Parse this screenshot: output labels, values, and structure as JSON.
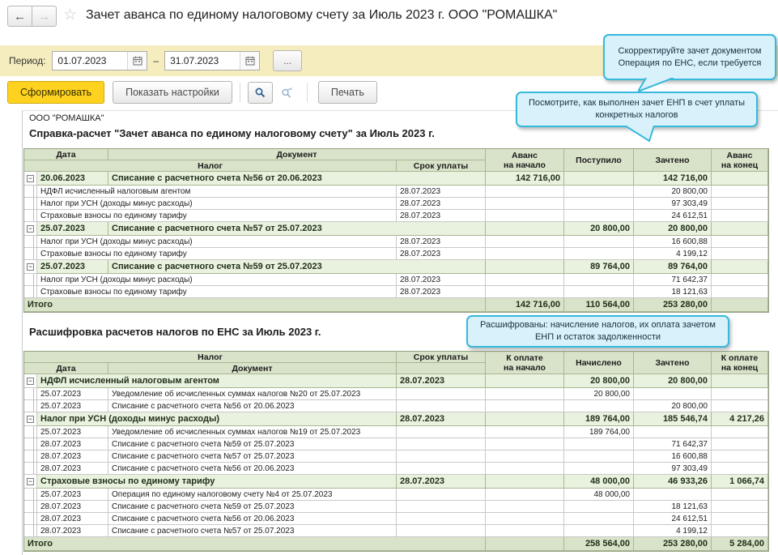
{
  "window": {
    "title": "Зачет аванса по единому налоговому счету за Июль 2023 г. ООО \"РОМАШКА\""
  },
  "period": {
    "label": "Период:",
    "from": "01.07.2023",
    "dash": "–",
    "to": "31.07.2023",
    "more_label": "..."
  },
  "toolbar": {
    "generate_label": "Сформировать",
    "settings_label": "Показать настройки",
    "print_label": "Печать"
  },
  "tooltips": {
    "correct": "Скорректируйте зачет документом Операция по ЕНС, если требуется",
    "look": "Посмотрите, как выполнен зачет ЕНП в счет уплаты конкретных налогов",
    "decoded": "Расшифрованы: начисление налогов, их оплата зачетом ЕНП и остаток задолженности"
  },
  "report": {
    "org": "ООО \"РОМАШКА\"",
    "title1": "Справка-расчет \"Зачет аванса по единому налоговому счету\" за Июль 2023 г.",
    "title2": "Расшифровка расчетов налогов по ЕНС за Июль 2023 г."
  },
  "table1": {
    "header_rows": [
      [
        "Дата",
        "Документ"
      ],
      [
        "Налог",
        "Срок уплаты"
      ]
    ],
    "num_headers": [
      "Аванс\nна начало",
      "Поступило",
      "Зачтено",
      "Аванс\nна конец"
    ],
    "num_names": [
      "advance-start",
      "received",
      "offset",
      "advance-end"
    ],
    "rows": [
      {
        "type": "group",
        "date": "20.06.2023",
        "doc": "Списание с расчетного счета №56 от 20.06.2023",
        "c1": "142 716,00",
        "c2": "",
        "c3": "142 716,00",
        "c4": ""
      },
      {
        "type": "detail",
        "tax": "НДФЛ исчисленный налоговым агентом",
        "due": "28.07.2023",
        "c1": "",
        "c2": "",
        "c3": "20 800,00",
        "c4": ""
      },
      {
        "type": "detail",
        "tax": "Налог при УСН (доходы минус расходы)",
        "due": "28.07.2023",
        "c1": "",
        "c2": "",
        "c3": "97 303,49",
        "c4": ""
      },
      {
        "type": "detail",
        "tax": "Страховые взносы по единому тарифу",
        "due": "28.07.2023",
        "c1": "",
        "c2": "",
        "c3": "24 612,51",
        "c4": ""
      },
      {
        "type": "group",
        "date": "25.07.2023",
        "doc": "Списание с расчетного счета №57 от 25.07.2023",
        "c1": "",
        "c2": "20 800,00",
        "c3": "20 800,00",
        "c4": ""
      },
      {
        "type": "detail",
        "tax": "Налог при УСН (доходы минус расходы)",
        "due": "28.07.2023",
        "c1": "",
        "c2": "",
        "c3": "16 600,88",
        "c4": ""
      },
      {
        "type": "detail",
        "tax": "Страховые взносы по единому тарифу",
        "due": "28.07.2023",
        "c1": "",
        "c2": "",
        "c3": "4 199,12",
        "c4": ""
      },
      {
        "type": "group",
        "date": "25.07.2023",
        "doc": "Списание с расчетного счета №59 от 25.07.2023",
        "c1": "",
        "c2": "89 764,00",
        "c3": "89 764,00",
        "c4": ""
      },
      {
        "type": "detail",
        "tax": "Налог при УСН (доходы минус расходы)",
        "due": "28.07.2023",
        "c1": "",
        "c2": "",
        "c3": "71 642,37",
        "c4": ""
      },
      {
        "type": "detail",
        "tax": "Страховые взносы по единому тарифу",
        "due": "28.07.2023",
        "c1": "",
        "c2": "",
        "c3": "18 121,63",
        "c4": ""
      },
      {
        "type": "total",
        "label": "Итого",
        "c1": "142 716,00",
        "c2": "110 564,00",
        "c3": "253 280,00",
        "c4": ""
      }
    ]
  },
  "table2": {
    "header_rows": [
      [
        "Налог",
        "Срок уплаты"
      ],
      [
        "Дата",
        "Документ",
        ""
      ]
    ],
    "num_headers": [
      "К оплате\nна начало",
      "Начислено",
      "Зачтено",
      "К оплате\nна конец"
    ],
    "num_names": [
      "payable-start",
      "accrued",
      "offset",
      "payable-end"
    ],
    "rows": [
      {
        "type": "group",
        "tax": "НДФЛ исчисленный налоговым агентом",
        "due": "28.07.2023",
        "c1": "",
        "c2": "20 800,00",
        "c3": "20 800,00",
        "c4": ""
      },
      {
        "type": "detail",
        "date": "25.07.2023",
        "doc": "Уведомление об исчисленных суммах налогов №20 от 25.07.2023",
        "c1": "",
        "c2": "20 800,00",
        "c3": "",
        "c4": ""
      },
      {
        "type": "detail",
        "date": "25.07.2023",
        "doc": "Списание с расчетного счета №56 от 20.06.2023",
        "c1": "",
        "c2": "",
        "c3": "20 800,00",
        "c4": ""
      },
      {
        "type": "group",
        "tax": "Налог при УСН (доходы минус расходы)",
        "due": "28.07.2023",
        "c1": "",
        "c2": "189 764,00",
        "c3": "185 546,74",
        "c4": "4 217,26"
      },
      {
        "type": "detail",
        "date": "25.07.2023",
        "doc": "Уведомление об исчисленных суммах налогов №19 от 25.07.2023",
        "c1": "",
        "c2": "189 764,00",
        "c3": "",
        "c4": ""
      },
      {
        "type": "detail",
        "date": "28.07.2023",
        "doc": "Списание с расчетного счета №59 от 25.07.2023",
        "c1": "",
        "c2": "",
        "c3": "71 642,37",
        "c4": ""
      },
      {
        "type": "detail",
        "date": "28.07.2023",
        "doc": "Списание с расчетного счета №57 от 25.07.2023",
        "c1": "",
        "c2": "",
        "c3": "16 600,88",
        "c4": ""
      },
      {
        "type": "detail",
        "date": "28.07.2023",
        "doc": "Списание с расчетного счета №56 от 20.06.2023",
        "c1": "",
        "c2": "",
        "c3": "97 303,49",
        "c4": ""
      },
      {
        "type": "group",
        "tax": "Страховые взносы по единому тарифу",
        "due": "28.07.2023",
        "c1": "",
        "c2": "48 000,00",
        "c3": "46 933,26",
        "c4": "1 066,74"
      },
      {
        "type": "detail",
        "date": "25.07.2023",
        "doc": "Операция по единому налоговому счету №4 от 25.07.2023",
        "c1": "",
        "c2": "48 000,00",
        "c3": "",
        "c4": ""
      },
      {
        "type": "detail",
        "date": "28.07.2023",
        "doc": "Списание с расчетного счета №59 от 25.07.2023",
        "c1": "",
        "c2": "",
        "c3": "18 121,63",
        "c4": ""
      },
      {
        "type": "detail",
        "date": "28.07.2023",
        "doc": "Списание с расчетного счета №56 от 20.06.2023",
        "c1": "",
        "c2": "",
        "c3": "24 612,51",
        "c4": ""
      },
      {
        "type": "detail",
        "date": "28.07.2023",
        "doc": "Списание с расчетного счета №57 от 25.07.2023",
        "c1": "",
        "c2": "",
        "c3": "4 199,12",
        "c4": ""
      },
      {
        "type": "total",
        "label": "Итого",
        "c1": "",
        "c2": "258 564,00",
        "c3": "253 280,00",
        "c4": "5 284,00"
      }
    ]
  },
  "colors": {
    "accent_yellow": "#ffd21f",
    "period_bar": "#f6edbe",
    "header_green": "#d9e3c9",
    "group_green": "#e9f2de",
    "tooltip_bg": "#d9f1fa",
    "tooltip_border": "#35b9dc"
  }
}
